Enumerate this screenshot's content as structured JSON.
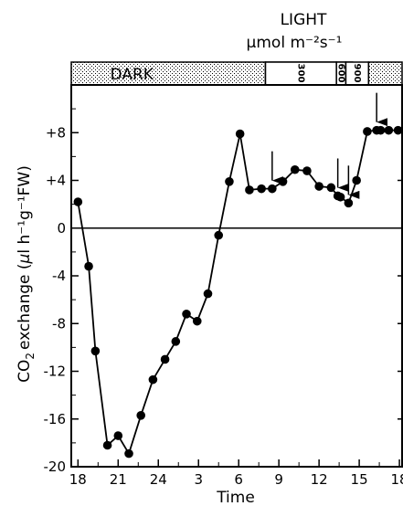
{
  "chart_data": {
    "type": "line",
    "title": "",
    "xlabel": "Time",
    "ylabel": "CO2 exchange (µl h⁻¹ g⁻¹ FW)",
    "ylabel_parts": {
      "pre": "CO",
      "sub": "2",
      "mid": "exchange (",
      "mu": "µ",
      "post": "l h⁻¹g⁻¹FW)"
    },
    "xlim": [
      17.5,
      42.2
    ],
    "ylim": [
      -20,
      12
    ],
    "x_ticks": [
      {
        "x": 18,
        "label": "18"
      },
      {
        "x": 21,
        "label": "21"
      },
      {
        "x": 24,
        "label": "24"
      },
      {
        "x": 27,
        "label": "3"
      },
      {
        "x": 30,
        "label": "6"
      },
      {
        "x": 33,
        "label": "9"
      },
      {
        "x": 36,
        "label": "12"
      },
      {
        "x": 39,
        "label": "15"
      },
      {
        "x": 42,
        "label": "18"
      }
    ],
    "y_ticks": [
      {
        "y": 8,
        "label": "+8"
      },
      {
        "y": 4,
        "label": "+4"
      },
      {
        "y": 0,
        "label": "0"
      },
      {
        "y": -4,
        "label": "-4"
      },
      {
        "y": -8,
        "label": "-8"
      },
      {
        "y": -12,
        "label": "-12"
      },
      {
        "y": -16,
        "label": "-16"
      },
      {
        "y": -20,
        "label": "-20"
      }
    ],
    "zero_line": 0,
    "light_header": {
      "line1": "LIGHT",
      "line2": "µmol m⁻²s⁻¹"
    },
    "bands": [
      {
        "from": 17.5,
        "to": 32.0,
        "label": "DARK",
        "pattern": "stippled"
      },
      {
        "from": 32.0,
        "to": 38.5,
        "label": "",
        "pattern": "white",
        "segments": [
          {
            "from": 32.0,
            "to": 37.3,
            "label": "300"
          },
          {
            "from": 37.3,
            "to": 38.0,
            "label": "600"
          },
          {
            "from": 38.0,
            "to": 39.7,
            "label": "900"
          }
        ]
      },
      {
        "from": 39.7,
        "to": 42.2,
        "label": "",
        "pattern": "stippled"
      }
    ],
    "series": [
      {
        "name": "",
        "x": [
          18.0,
          18.8,
          19.3,
          20.2,
          21.0,
          21.8,
          22.7,
          23.6,
          24.5,
          25.3,
          26.1,
          26.9,
          27.7,
          28.5,
          29.3,
          30.1,
          30.8,
          31.7,
          32.5,
          33.3,
          34.2,
          35.1,
          36.0,
          36.9,
          37.4,
          37.6,
          38.2,
          38.8,
          39.6,
          40.3,
          40.6,
          41.2,
          41.9
        ],
        "y": [
          2.2,
          -3.2,
          -10.3,
          -18.2,
          -17.4,
          -18.9,
          -15.7,
          -12.7,
          -11.0,
          -9.5,
          -7.2,
          -7.8,
          -5.5,
          -0.6,
          3.9,
          7.9,
          3.2,
          3.3,
          3.3,
          3.9,
          4.9,
          4.8,
          3.5,
          3.4,
          2.7,
          2.6,
          2.1,
          4.0,
          8.1,
          8.2,
          8.2,
          8.2,
          8.2
        ],
        "color": "#000000"
      }
    ],
    "arrows_at_x": [
      32.5,
      37.4,
      38.2,
      40.3
    ],
    "grid": false,
    "legend": "none"
  }
}
